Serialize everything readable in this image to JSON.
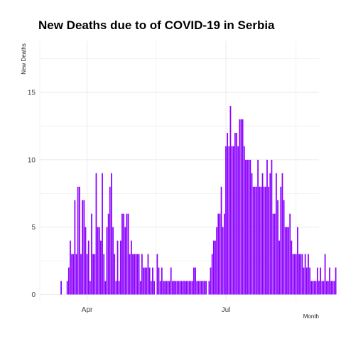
{
  "chart_data": {
    "type": "bar",
    "title": "New Deaths due to of COVID-19 in Serbia",
    "xlabel": "Month",
    "ylabel": "New Deaths",
    "bar_color": "#8B00FF",
    "grid_color": "#e6e6e6",
    "start_date": "2020-03-15",
    "xlim": [
      "2020-03-01",
      "2020-08-31"
    ],
    "ylim": [
      -0.5,
      18.8
    ],
    "y_ticks": [
      0,
      5,
      10,
      15
    ],
    "x_ticks": [
      {
        "date": "2020-04-01",
        "label": "Apr"
      },
      {
        "date": "2020-07-01",
        "label": "Jul"
      }
    ],
    "x_minor_gridlines": [
      "2020-03-01",
      "2020-05-16",
      "2020-08-16"
    ],
    "values": [
      1,
      0,
      0,
      0,
      1,
      2,
      4,
      3,
      3,
      7,
      3,
      8,
      8,
      3,
      7,
      7,
      5,
      3,
      4,
      1,
      6,
      3,
      3,
      9,
      5,
      5,
      4,
      9,
      3,
      1,
      5,
      6,
      8,
      9,
      5,
      3,
      1,
      4,
      1,
      4,
      6,
      6,
      5,
      6,
      6,
      3,
      4,
      3,
      3,
      3,
      3,
      3,
      1,
      3,
      2,
      2,
      2,
      3,
      2,
      1,
      2,
      1,
      0,
      3,
      2,
      1,
      2,
      1,
      1,
      1,
      1,
      1,
      2,
      1,
      1,
      1,
      1,
      1,
      1,
      1,
      1,
      1,
      1,
      1,
      1,
      1,
      1,
      2,
      2,
      1,
      1,
      1,
      1,
      1,
      1,
      1,
      0,
      1,
      2,
      3,
      4,
      4,
      5,
      6,
      6,
      8,
      5,
      6,
      11,
      12,
      11,
      14,
      11,
      11,
      12,
      12,
      11,
      13,
      13,
      13,
      11,
      10,
      10,
      10,
      10,
      9,
      8,
      8,
      8,
      10,
      8,
      8,
      9,
      8,
      8,
      10,
      8,
      9,
      10,
      6,
      6,
      9,
      7,
      4,
      8,
      9,
      7,
      5,
      5,
      5,
      6,
      4,
      3,
      3,
      3,
      5,
      3,
      3,
      3,
      2,
      3,
      2,
      3,
      2,
      1,
      1,
      1,
      1,
      2,
      1,
      2,
      1,
      1,
      3,
      1,
      1,
      2,
      1,
      1,
      1,
      2
    ]
  }
}
